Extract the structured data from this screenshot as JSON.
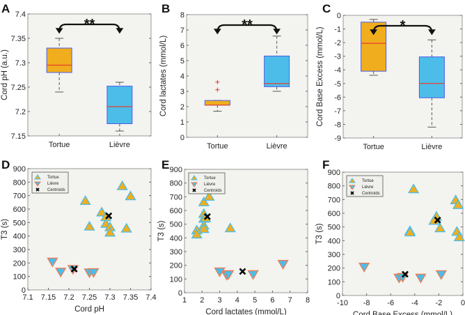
{
  "colors": {
    "tortue": "#f0ae1e",
    "lievre": "#4cbde9",
    "box_edge": "#4a5de8",
    "median": "#e8402a",
    "outlier": "#ee3333",
    "plot_bg": "#f3f3ef",
    "centroid": "#000000"
  },
  "chart_data": [
    {
      "panel": "A",
      "type": "box",
      "ylabel": "Cord pH (a.u.)",
      "ylim": [
        7.15,
        7.4
      ],
      "yticks": [
        7.15,
        7.2,
        7.25,
        7.3,
        7.35,
        7.4
      ],
      "yticklabels": [
        "7.15",
        "7.2",
        "7.25",
        "7.3",
        "7.35",
        "7.4"
      ],
      "categories": [
        "Tortue",
        "Lièvre"
      ],
      "boxes": [
        {
          "min": 7.24,
          "q1": 7.28,
          "median": 7.295,
          "q3": 7.33,
          "max": 7.35,
          "outliers": []
        },
        {
          "min": 7.16,
          "q1": 7.175,
          "median": 7.21,
          "q3": 7.252,
          "max": 7.26,
          "outliers": []
        }
      ],
      "significance": "**"
    },
    {
      "panel": "B",
      "type": "box",
      "ylabel": "Cord lactates (mmol/L)",
      "ylim": [
        0,
        8
      ],
      "yticks": [
        0,
        1,
        2,
        3,
        4,
        5,
        6,
        7,
        8
      ],
      "yticklabels": [
        "0",
        "1",
        "2",
        "3",
        "4",
        "5",
        "6",
        "7",
        "8"
      ],
      "categories": [
        "Tortue",
        "Lièvre"
      ],
      "boxes": [
        {
          "min": 1.7,
          "q1": 2.1,
          "median": 2.1,
          "q3": 2.4,
          "max": 2.4,
          "outliers": [
            3.1,
            3.6
          ]
        },
        {
          "min": 3.0,
          "q1": 3.3,
          "median": 3.5,
          "q3": 5.3,
          "max": 6.6,
          "outliers": []
        }
      ],
      "significance": "**"
    },
    {
      "panel": "C",
      "type": "box",
      "ylabel": "Cord Base Excess (mmol/L)",
      "ylim": [
        -9,
        0
      ],
      "yticks": [
        -9,
        -8,
        -7,
        -6,
        -5,
        -4,
        -3,
        -2,
        -1,
        0
      ],
      "yticklabels": [
        "-9",
        "-8",
        "-7",
        "-6",
        "-5",
        "-4",
        "-3",
        "-2",
        "-1",
        "0"
      ],
      "categories": [
        "Tortue",
        "Lièvre"
      ],
      "boxes": [
        {
          "min": -4.4,
          "q1": -4.1,
          "median": -2.05,
          "q3": -0.5,
          "max": -0.3,
          "outliers": []
        },
        {
          "min": -8.2,
          "q1": -6.05,
          "median": -5.0,
          "q3": -3.05,
          "max": -1.8,
          "outliers": []
        }
      ],
      "significance": "*"
    },
    {
      "panel": "D",
      "type": "scatter",
      "xlabel": "Cord pH",
      "ylabel": "T3 (s)",
      "xlim": [
        7.1,
        7.4
      ],
      "ylim": [
        0,
        900
      ],
      "xticks": [
        7.1,
        7.15,
        7.2,
        7.25,
        7.3,
        7.35,
        7.4
      ],
      "xticklabels": [
        "7.1",
        "7.15",
        "7.2",
        "7.25",
        "7.3",
        "7.35",
        "7.4"
      ],
      "yticks": [
        0,
        100,
        200,
        300,
        400,
        500,
        600,
        700,
        800,
        900
      ],
      "yticklabels": [
        "0",
        "100",
        "200",
        "300",
        "400",
        "500",
        "600",
        "700",
        "800",
        "900"
      ],
      "legend": [
        "Tortue",
        "Lièvre",
        "Centroids"
      ],
      "tortue": [
        [
          7.24,
          660
        ],
        [
          7.25,
          470
        ],
        [
          7.28,
          575
        ],
        [
          7.29,
          540
        ],
        [
          7.29,
          490
        ],
        [
          7.3,
          465
        ],
        [
          7.3,
          425
        ],
        [
          7.33,
          770
        ],
        [
          7.35,
          695
        ],
        [
          7.34,
          455
        ]
      ],
      "lievre": [
        [
          7.16,
          210
        ],
        [
          7.18,
          135
        ],
        [
          7.21,
          155
        ],
        [
          7.25,
          130
        ],
        [
          7.26,
          132
        ]
      ],
      "centroids": [
        [
          7.297,
          550
        ],
        [
          7.213,
          155
        ]
      ]
    },
    {
      "panel": "E",
      "type": "scatter",
      "xlabel": "Cord lactates (mmol/L)",
      "ylabel": "T3 (s)",
      "xlim": [
        1,
        8
      ],
      "ylim": [
        0,
        900
      ],
      "xticks": [
        1,
        2,
        3,
        4,
        5,
        6,
        7,
        8
      ],
      "xticklabels": [
        "1",
        "2",
        "3",
        "4",
        "5",
        "6",
        "7",
        "8"
      ],
      "yticks": [
        0,
        100,
        200,
        300,
        400,
        500,
        600,
        700,
        800,
        900
      ],
      "yticklabels": [
        "0",
        "100",
        "200",
        "300",
        "400",
        "500",
        "600",
        "700",
        "800",
        "900"
      ],
      "legend": [
        "Tortue",
        "Lièvre",
        "Centroids"
      ],
      "tortue": [
        [
          2.1,
          660
        ],
        [
          2.4,
          700
        ],
        [
          2.1,
          575
        ],
        [
          2.1,
          540
        ],
        [
          2.1,
          490
        ],
        [
          2.1,
          465
        ],
        [
          1.7,
          455
        ],
        [
          1.7,
          425
        ],
        [
          3.6,
          470
        ],
        [
          2.2,
          545
        ]
      ],
      "lievre": [
        [
          3.0,
          155
        ],
        [
          3.4,
          130
        ],
        [
          3.5,
          135
        ],
        [
          4.9,
          135
        ],
        [
          6.6,
          210
        ]
      ],
      "centroids": [
        [
          2.3,
          555
        ],
        [
          4.3,
          155
        ]
      ]
    },
    {
      "panel": "F",
      "type": "scatter",
      "xlabel": "Cord Base Excess (mmol/L)",
      "ylabel": "T3 (s)",
      "xlim": [
        -10,
        0
      ],
      "ylim": [
        0,
        900
      ],
      "xticks": [
        -10,
        -8,
        -6,
        -4,
        -2,
        0
      ],
      "xticklabels": [
        "-10",
        "-8",
        "-6",
        "-4",
        "-2",
        "0"
      ],
      "yticks": [
        0,
        100,
        200,
        300,
        400,
        500,
        600,
        700,
        800,
        900
      ],
      "yticklabels": [
        "0",
        "100",
        "200",
        "300",
        "400",
        "500",
        "600",
        "700",
        "800",
        "900"
      ],
      "legend": [
        "Tortue",
        "Lièvre",
        "Centroids"
      ],
      "tortue": [
        [
          -4.1,
          775
        ],
        [
          -0.6,
          695
        ],
        [
          -0.4,
          660
        ],
        [
          -2.2,
          575
        ],
        [
          -2.4,
          545
        ],
        [
          -1.9,
          490
        ],
        [
          -4.4,
          470
        ],
        [
          -4.4,
          460
        ],
        [
          -0.5,
          465
        ],
        [
          -0.3,
          425
        ]
      ],
      "lievre": [
        [
          -8.2,
          210
        ],
        [
          -5.3,
          130
        ],
        [
          -5.0,
          135
        ],
        [
          -3.5,
          130
        ],
        [
          -1.8,
          155
        ]
      ],
      "centroids": [
        [
          -2.1,
          550
        ],
        [
          -4.8,
          155
        ]
      ]
    }
  ]
}
